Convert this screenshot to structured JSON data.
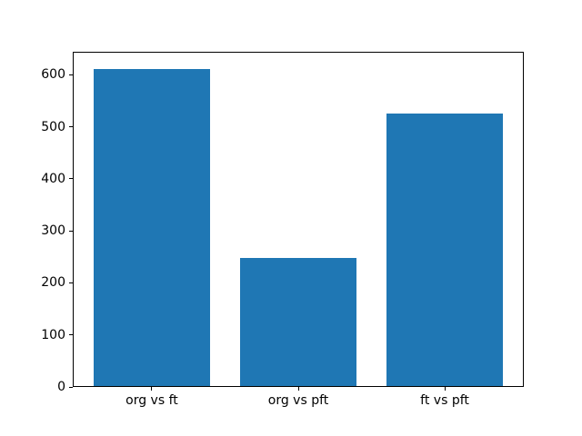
{
  "chart_data": {
    "type": "bar",
    "categories": [
      "org vs ft",
      "org vs pft",
      "ft vs pft"
    ],
    "values": [
      613,
      248,
      527
    ],
    "title": "",
    "xlabel": "",
    "ylabel": "",
    "ylim": [
      0,
      644
    ],
    "y_ticks": [
      0,
      100,
      200,
      300,
      400,
      500,
      600
    ],
    "bar_color": "#1f77b4",
    "axes_background": "#ffffff",
    "figure_background": "#ffffff",
    "spine_color": "#000000",
    "tick_label_color": "#000000",
    "grid": false,
    "legend": "none"
  }
}
